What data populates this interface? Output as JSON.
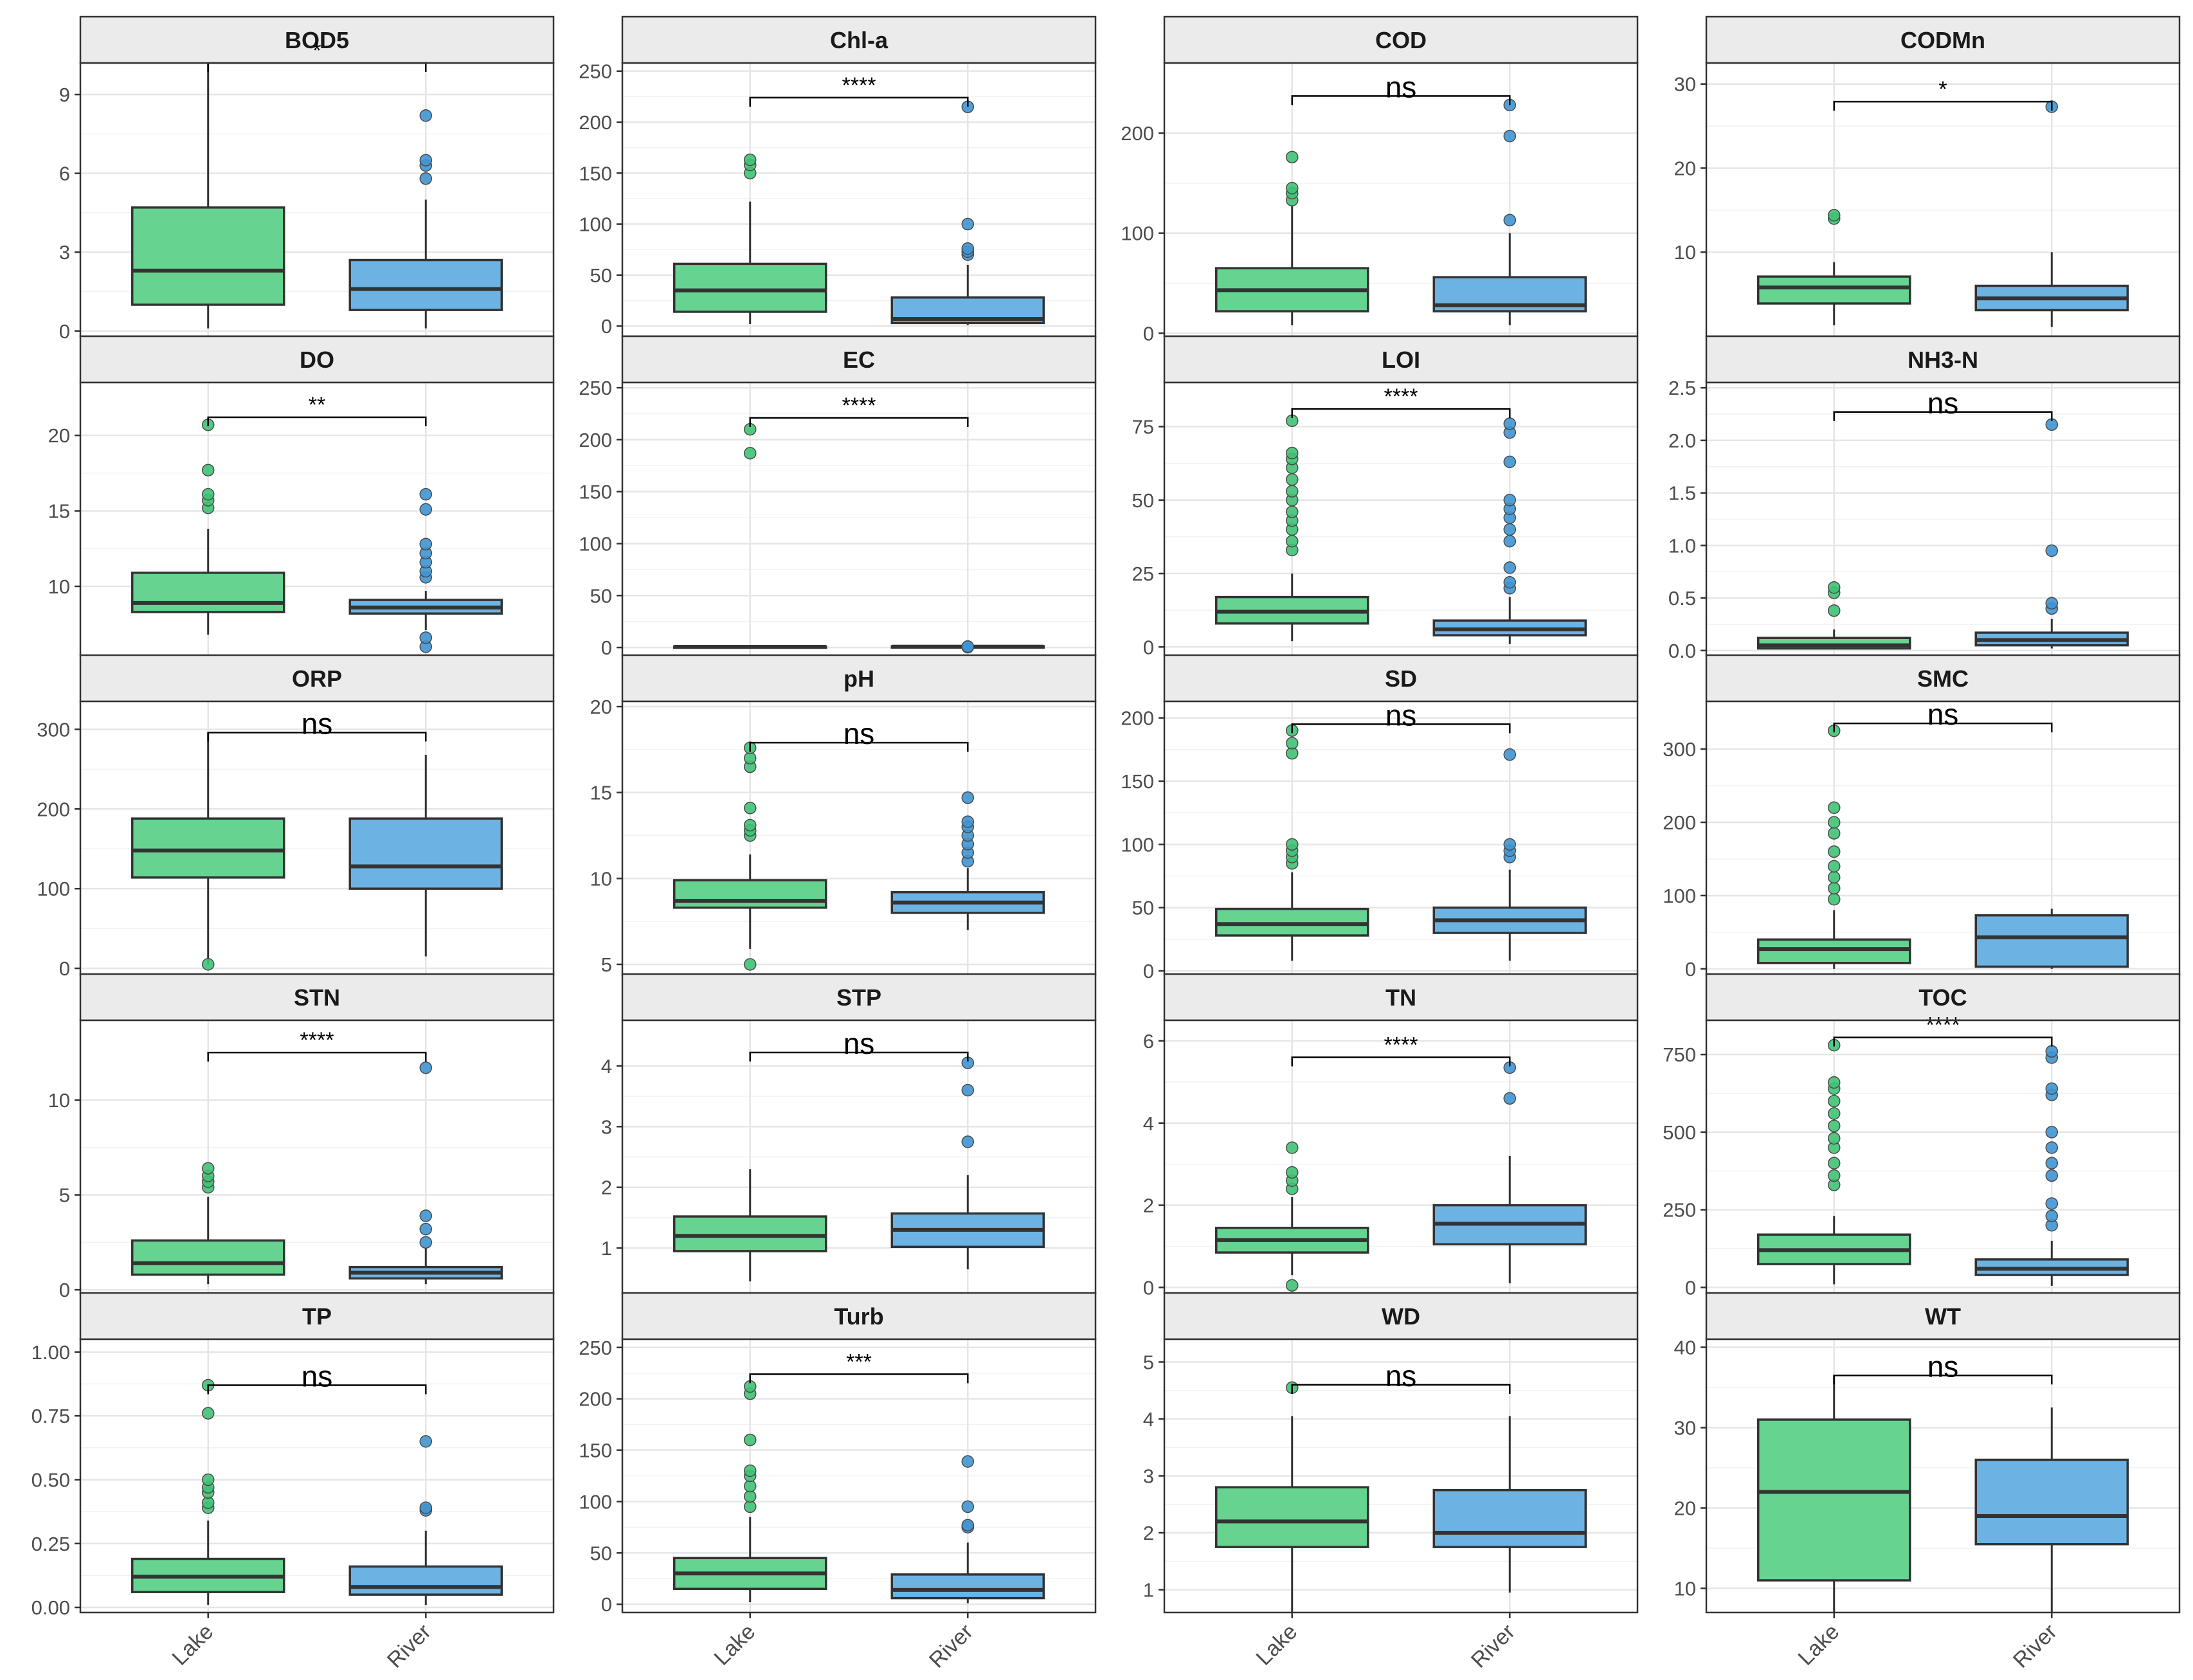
{
  "chart_data": {
    "type": "box",
    "categories": [
      "Lake",
      "River"
    ],
    "colors": {
      "Lake": "#66d490",
      "River": "#6cb3e4",
      "Lake_point": "#3fc274",
      "River_point": "#3f95d3"
    },
    "panels": [
      {
        "title": "BOD5",
        "sig": "*",
        "ylim": [
          -0.2,
          10.2
        ],
        "ticks": [
          0,
          3,
          6,
          9
        ],
        "boxes": [
          {
            "cat": "Lake",
            "lower": 0.1,
            "q1": 1.0,
            "median": 2.3,
            "q3": 4.7,
            "upper": 10.2,
            "outliers": []
          },
          {
            "cat": "River",
            "lower": 0.1,
            "q1": 0.8,
            "median": 1.6,
            "q3": 2.7,
            "upper": 5.0,
            "outliers": [
              5.8,
              6.3,
              6.5,
              8.2
            ]
          }
        ],
        "bracket_y": 10.2
      },
      {
        "title": "Chl-a",
        "sig": "****",
        "ylim": [
          -10,
          258
        ],
        "ticks": [
          0,
          50,
          100,
          150,
          200,
          250
        ],
        "boxes": [
          {
            "cat": "Lake",
            "lower": 2,
            "q1": 14,
            "median": 35,
            "q3": 61,
            "upper": 122,
            "outliers": [
              150,
              158,
              163
            ]
          },
          {
            "cat": "River",
            "lower": 1,
            "q1": 3,
            "median": 7,
            "q3": 28,
            "upper": 60,
            "outliers": [
              70,
              73,
              76,
              100,
              215
            ]
          }
        ],
        "bracket_y": 224
      },
      {
        "title": "COD",
        "sig": "ns",
        "ylim": [
          -3,
          270
        ],
        "ticks": [
          0,
          100,
          200
        ],
        "boxes": [
          {
            "cat": "Lake",
            "lower": 8,
            "q1": 22,
            "median": 43,
            "q3": 65,
            "upper": 128,
            "outliers": [
              133,
              140,
              145,
              176
            ]
          },
          {
            "cat": "River",
            "lower": 8,
            "q1": 22,
            "median": 28,
            "q3": 56,
            "upper": 100,
            "outliers": [
              113,
              197,
              228
            ]
          }
        ],
        "bracket_y": 237
      },
      {
        "title": "CODMn",
        "sig": "*",
        "ylim": [
          0,
          32.5
        ],
        "ticks": [
          10,
          20,
          30
        ],
        "boxes": [
          {
            "cat": "Lake",
            "lower": 1.3,
            "q1": 3.9,
            "median": 5.8,
            "q3": 7.1,
            "upper": 8.8,
            "outliers": [
              14.0,
              14.4
            ]
          },
          {
            "cat": "River",
            "lower": 1.1,
            "q1": 3.1,
            "median": 4.5,
            "q3": 6.0,
            "upper": 10.0,
            "outliers": [
              27.3
            ]
          }
        ],
        "bracket_y": 27.9
      },
      {
        "title": "DO",
        "sig": "**",
        "ylim": [
          5.4,
          23.5
        ],
        "ticks": [
          10,
          15,
          20
        ],
        "boxes": [
          {
            "cat": "Lake",
            "lower": 6.8,
            "q1": 8.3,
            "median": 8.9,
            "q3": 10.9,
            "upper": 13.8,
            "outliers": [
              15.2,
              15.7,
              16.1,
              17.7,
              20.7
            ]
          },
          {
            "cat": "River",
            "lower": 7.1,
            "q1": 8.2,
            "median": 8.6,
            "q3": 9.1,
            "upper": 9.7,
            "outliers": [
              6.0,
              6.6,
              10.6,
              11.0,
              11.6,
              12.2,
              12.8,
              15.1,
              16.1
            ]
          }
        ],
        "bracket_y": 21.2
      },
      {
        "title": "EC",
        "sig": "****",
        "ylim": [
          -8,
          255
        ],
        "ticks": [
          0,
          50,
          100,
          150,
          200,
          250
        ],
        "boxes": [
          {
            "cat": "Lake",
            "lower": 0.2,
            "q1": 0.5,
            "median": 0.7,
            "q3": 1.0,
            "upper": 1.3,
            "outliers": [
              187,
              210
            ]
          },
          {
            "cat": "River",
            "lower": 0.2,
            "q1": 0.5,
            "median": 0.8,
            "q3": 1.2,
            "upper": 1.5,
            "outliers": [
              0.3,
              0.5,
              0.9
            ]
          }
        ],
        "bracket_y": 221
      },
      {
        "title": "LOI",
        "sig": "****",
        "ylim": [
          -3,
          90
        ],
        "ticks": [
          0,
          25,
          50,
          75
        ],
        "boxes": [
          {
            "cat": "Lake",
            "lower": 2,
            "q1": 8,
            "median": 12,
            "q3": 17,
            "upper": 25,
            "outliers": [
              33,
              36,
              40,
              43,
              46,
              50,
              53,
              57,
              61,
              64,
              66,
              77
            ]
          },
          {
            "cat": "River",
            "lower": 1,
            "q1": 4,
            "median": 6,
            "q3": 9,
            "upper": 17,
            "outliers": [
              20,
              22,
              27,
              36,
              40,
              44,
              47,
              50,
              63,
              73,
              76
            ]
          }
        ],
        "bracket_y": 81
      },
      {
        "title": "NH3-N",
        "sig": "ns",
        "ylim": [
          -0.05,
          2.55
        ],
        "ticks": [
          0.0,
          0.5,
          1.0,
          1.5,
          2.0,
          2.5
        ],
        "tick_labels": [
          "0.0",
          "0.5",
          "1.0",
          "1.5",
          "2.0",
          "2.5"
        ],
        "boxes": [
          {
            "cat": "Lake",
            "lower": 0.01,
            "q1": 0.02,
            "median": 0.05,
            "q3": 0.12,
            "upper": 0.2,
            "outliers": [
              0.38,
              0.55,
              0.6
            ]
          },
          {
            "cat": "River",
            "lower": 0.02,
            "q1": 0.05,
            "median": 0.1,
            "q3": 0.17,
            "upper": 0.3,
            "outliers": [
              0.4,
              0.45,
              0.95,
              2.15
            ]
          }
        ],
        "bracket_y": 2.27
      },
      {
        "title": "ORP",
        "sig": "ns",
        "ylim": [
          -8,
          335
        ],
        "ticks": [
          0,
          100,
          200,
          300
        ],
        "boxes": [
          {
            "cat": "Lake",
            "lower": 5,
            "q1": 114,
            "median": 148,
            "q3": 188,
            "upper": 296,
            "outliers": [
              5
            ]
          },
          {
            "cat": "River",
            "lower": 15,
            "q1": 100,
            "median": 128,
            "q3": 188,
            "upper": 268,
            "outliers": []
          }
        ],
        "bracket_y": 296
      },
      {
        "title": "pH",
        "sig": "ns",
        "ylim": [
          4.4,
          20.3
        ],
        "ticks": [
          5,
          10,
          15,
          20
        ],
        "boxes": [
          {
            "cat": "Lake",
            "lower": 5.9,
            "q1": 8.3,
            "median": 8.7,
            "q3": 9.9,
            "upper": 11.4,
            "outliers": [
              5.0,
              12.5,
              12.8,
              13.1,
              14.1,
              16.5,
              17.0,
              17.6
            ]
          },
          {
            "cat": "River",
            "lower": 7.0,
            "q1": 8.0,
            "median": 8.6,
            "q3": 9.2,
            "upper": 10.6,
            "outliers": [
              11.0,
              11.5,
              12.0,
              12.5,
              13.0,
              13.3,
              14.7
            ]
          }
        ],
        "bracket_y": 17.9
      },
      {
        "title": "SD",
        "sig": "ns",
        "ylim": [
          -3,
          213
        ],
        "ticks": [
          0,
          50,
          100,
          150,
          200
        ],
        "boxes": [
          {
            "cat": "Lake",
            "lower": 8,
            "q1": 28,
            "median": 37,
            "q3": 49,
            "upper": 78,
            "outliers": [
              85,
              90,
              95,
              100,
              172,
              180,
              190
            ]
          },
          {
            "cat": "River",
            "lower": 8,
            "q1": 30,
            "median": 40,
            "q3": 50,
            "upper": 80,
            "outliers": [
              90,
              95,
              100,
              171
            ]
          }
        ],
        "bracket_y": 195
      },
      {
        "title": "SMC",
        "sig": "ns",
        "ylim": [
          -8,
          365
        ],
        "ticks": [
          0,
          100,
          200,
          300
        ],
        "boxes": [
          {
            "cat": "Lake",
            "lower": 0,
            "q1": 8,
            "median": 27,
            "q3": 40,
            "upper": 80,
            "outliers": [
              95,
              110,
              125,
              140,
              160,
              185,
              200,
              220,
              325
            ]
          },
          {
            "cat": "River",
            "lower": 0,
            "q1": 3,
            "median": 43,
            "q3": 73,
            "upper": 82,
            "outliers": []
          }
        ],
        "bracket_y": 335
      },
      {
        "title": "STN",
        "sig": "****",
        "ylim": [
          -0.2,
          14.2
        ],
        "ticks": [
          0,
          5,
          10
        ],
        "boxes": [
          {
            "cat": "Lake",
            "lower": 0.3,
            "q1": 0.8,
            "median": 1.4,
            "q3": 2.6,
            "upper": 4.9,
            "outliers": [
              5.4,
              5.7,
              6.0,
              6.4
            ]
          },
          {
            "cat": "River",
            "lower": 0.3,
            "q1": 0.6,
            "median": 0.9,
            "q3": 1.2,
            "upper": 2.2,
            "outliers": [
              2.5,
              3.2,
              3.9,
              11.7
            ]
          }
        ],
        "bracket_y": 12.5
      },
      {
        "title": "STP",
        "sig": "ns",
        "ylim": [
          0.25,
          4.75
        ],
        "ticks": [
          1,
          2,
          3,
          4
        ],
        "boxes": [
          {
            "cat": "Lake",
            "lower": 0.45,
            "q1": 0.95,
            "median": 1.2,
            "q3": 1.52,
            "upper": 2.3,
            "outliers": []
          },
          {
            "cat": "River",
            "lower": 0.65,
            "q1": 1.02,
            "median": 1.3,
            "q3": 1.57,
            "upper": 2.2,
            "outliers": [
              2.75,
              3.6,
              4.05
            ]
          }
        ],
        "bracket_y": 4.22
      },
      {
        "title": "TN",
        "sig": "****",
        "ylim": [
          -0.15,
          6.5
        ],
        "ticks": [
          0,
          2,
          4,
          6
        ],
        "boxes": [
          {
            "cat": "Lake",
            "lower": 0.3,
            "q1": 0.85,
            "median": 1.15,
            "q3": 1.45,
            "upper": 2.2,
            "outliers": [
              0.05,
              2.4,
              2.6,
              2.8,
              3.4
            ]
          },
          {
            "cat": "River",
            "lower": 0.1,
            "q1": 1.05,
            "median": 1.55,
            "q3": 2.0,
            "upper": 3.2,
            "outliers": [
              4.6,
              5.35
            ]
          }
        ],
        "bracket_y": 5.6
      },
      {
        "title": "TOC",
        "sig": "****",
        "ylim": [
          -20,
          860
        ],
        "ticks": [
          0,
          250,
          500,
          750
        ],
        "boxes": [
          {
            "cat": "Lake",
            "lower": 10,
            "q1": 75,
            "median": 120,
            "q3": 170,
            "upper": 230,
            "outliers": [
              330,
              360,
              400,
              450,
              480,
              520,
              560,
              600,
              640,
              660,
              780
            ]
          },
          {
            "cat": "River",
            "lower": 5,
            "q1": 40,
            "median": 60,
            "q3": 90,
            "upper": 150,
            "outliers": [
              200,
              230,
              270,
              360,
              400,
              450,
              500,
              620,
              640,
              740,
              760
            ]
          }
        ],
        "bracket_y": 805
      },
      {
        "title": "TP",
        "sig": "ns",
        "ylim": [
          -0.02,
          1.05
        ],
        "ticks": [
          0.0,
          0.25,
          0.5,
          0.75,
          1.0
        ],
        "tick_labels": [
          "0.00",
          "0.25",
          "0.50",
          "0.75",
          "1.00"
        ],
        "boxes": [
          {
            "cat": "Lake",
            "lower": 0.01,
            "q1": 0.06,
            "median": 0.12,
            "q3": 0.19,
            "upper": 0.34,
            "outliers": [
              0.39,
              0.41,
              0.45,
              0.47,
              0.5,
              0.76,
              0.87
            ]
          },
          {
            "cat": "River",
            "lower": 0.01,
            "q1": 0.05,
            "median": 0.08,
            "q3": 0.16,
            "upper": 0.3,
            "outliers": [
              0.38,
              0.39,
              0.65
            ]
          }
        ],
        "bracket_y": 0.87
      },
      {
        "title": "Turb",
        "sig": "***",
        "ylim": [
          -8,
          258
        ],
        "ticks": [
          0,
          50,
          100,
          150,
          200,
          250
        ],
        "boxes": [
          {
            "cat": "Lake",
            "lower": 2,
            "q1": 15,
            "median": 30,
            "q3": 45,
            "upper": 85,
            "outliers": [
              95,
              105,
              115,
              125,
              130,
              160,
              205,
              212
            ]
          },
          {
            "cat": "River",
            "lower": 1,
            "q1": 6,
            "median": 14,
            "q3": 29,
            "upper": 60,
            "outliers": [
              75,
              77,
              95,
              139
            ]
          }
        ],
        "bracket_y": 224
      },
      {
        "title": "WD",
        "sig": "ns",
        "ylim": [
          0.6,
          5.4
        ],
        "ticks": [
          1,
          2,
          3,
          4,
          5
        ],
        "boxes": [
          {
            "cat": "Lake",
            "lower": 0.6,
            "q1": 1.75,
            "median": 2.2,
            "q3": 2.8,
            "upper": 4.05,
            "outliers": [
              4.55
            ]
          },
          {
            "cat": "River",
            "lower": 0.95,
            "q1": 1.75,
            "median": 2.0,
            "q3": 2.75,
            "upper": 4.05,
            "outliers": []
          }
        ],
        "bracket_y": 4.6
      },
      {
        "title": "WT",
        "sig": "ns",
        "ylim": [
          7.0,
          41.0
        ],
        "ticks": [
          10,
          20,
          30,
          40
        ],
        "boxes": [
          {
            "cat": "Lake",
            "lower": 7.0,
            "q1": 11.0,
            "median": 22.0,
            "q3": 31.0,
            "upper": 36.5,
            "outliers": []
          },
          {
            "cat": "River",
            "lower": 7.0,
            "q1": 15.5,
            "median": 19.0,
            "q3": 26.0,
            "upper": 32.5,
            "outliers": []
          }
        ],
        "bracket_y": 36.5
      }
    ]
  }
}
